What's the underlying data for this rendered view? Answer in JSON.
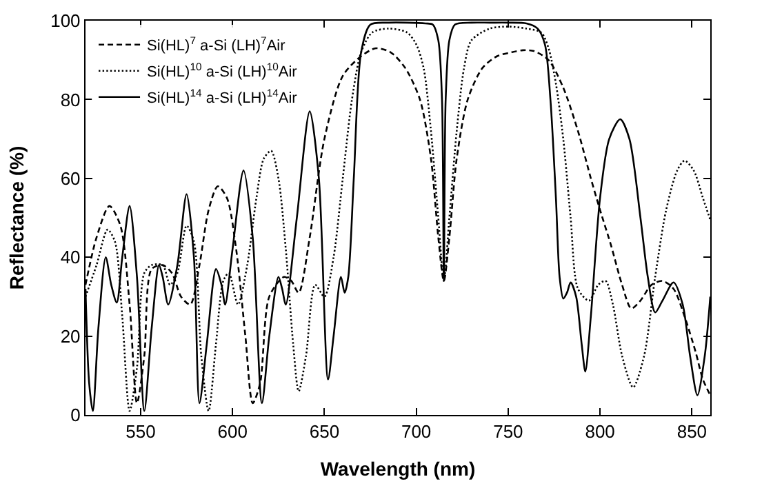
{
  "chart_data": {
    "type": "line",
    "xlabel": "Wavelength (nm)",
    "ylabel": "Reflectance (%)",
    "xlim": [
      520,
      860
    ],
    "ylim": [
      0,
      100
    ],
    "xticks": [
      550,
      600,
      650,
      700,
      750,
      800,
      850
    ],
    "yticks": [
      0,
      20,
      40,
      60,
      80,
      100
    ],
    "legend": "top left",
    "marker": "none",
    "series": [
      {
        "name": "Si(HL)$^{7}$ a-Si (LH)$^{7}$Air",
        "color": "#000000",
        "line_style": "dashed",
        "x": [
          520,
          526,
          533,
          539,
          544,
          548,
          552,
          556,
          562,
          567,
          572,
          577,
          582,
          587,
          592,
          597,
          602,
          607,
          611,
          615,
          620,
          628,
          632,
          636,
          642,
          650,
          660,
          670,
          678,
          686,
          694,
          702,
          708,
          712,
          715,
          718,
          722,
          728,
          736,
          744,
          752,
          758,
          764,
          772,
          780,
          788,
          795,
          800,
          806,
          812,
          817,
          822,
          828,
          834,
          840,
          846,
          852,
          856,
          860
        ],
        "values": [
          33,
          45,
          53,
          48,
          28,
          3,
          15,
          37,
          38,
          36,
          30,
          28,
          38,
          52,
          58,
          55,
          42,
          20,
          3,
          8,
          30,
          35,
          34,
          31,
          45,
          70,
          86,
          91,
          93,
          92,
          88,
          80,
          65,
          45,
          34,
          45,
          65,
          80,
          88,
          91,
          92,
          92.5,
          92.3,
          90,
          83,
          72,
          60,
          52,
          43,
          33,
          27,
          29,
          33,
          34,
          32,
          25,
          16,
          9,
          5
        ]
      },
      {
        "name": "Si(HL)$^{10}$ a-Si (LH)$^{10}$Air",
        "color": "#000000",
        "line_style": "dotted",
        "x": [
          520,
          526,
          532,
          536,
          540,
          544,
          548,
          552,
          556,
          562,
          566,
          570,
          575,
          579,
          583,
          587,
          591,
          595,
          598,
          603,
          608,
          613,
          617,
          621,
          625,
          629,
          633,
          636,
          640,
          645,
          650,
          655,
          660,
          665,
          670,
          676,
          685,
          695,
          700,
          704,
          708,
          712,
          715,
          718,
          722,
          726,
          730,
          740,
          750,
          760,
          768,
          772,
          776,
          780,
          784,
          788,
          794,
          799,
          803,
          807,
          812,
          818,
          824,
          830,
          836,
          842,
          846,
          851,
          856,
          860
        ],
        "values": [
          30,
          38,
          47,
          44,
          25,
          1,
          12,
          36,
          38,
          38,
          33,
          36,
          48,
          44,
          15,
          1,
          18,
          34,
          36,
          28,
          38,
          55,
          65,
          67,
          60,
          42,
          18,
          6,
          15,
          33,
          30,
          40,
          60,
          80,
          92,
          97,
          98,
          97,
          94,
          88,
          72,
          50,
          34,
          50,
          72,
          88,
          95,
          98,
          98.5,
          98,
          97,
          93,
          84,
          70,
          50,
          32,
          29,
          33,
          34,
          28,
          15,
          7,
          15,
          35,
          52,
          62,
          64.5,
          62,
          55,
          49.5
        ]
      },
      {
        "name": "Si(HL)$^{14}$ a-Si (LH)$^{14}$Air",
        "color": "#000000",
        "line_style": "solid",
        "x": [
          520,
          522,
          524,
          527,
          531,
          534,
          537,
          540,
          544,
          548,
          552,
          556,
          560,
          562,
          565,
          570,
          575,
          579,
          582,
          586,
          591,
          594,
          596,
          600,
          606,
          611,
          616,
          620,
          625,
          627,
          629,
          635,
          642,
          647,
          652,
          655,
          659,
          661,
          663,
          666,
          670,
          675,
          685,
          695,
          705,
          709,
          712,
          714,
          715,
          716,
          718,
          721,
          730,
          740,
          750,
          760,
          766,
          770,
          773,
          776,
          778,
          780,
          782,
          784,
          787,
          790,
          792,
          795,
          800,
          805,
          811,
          816,
          822,
          826,
          830,
          834,
          840,
          845,
          849,
          853,
          857,
          860
        ],
        "values": [
          32,
          8,
          1,
          22,
          40,
          33,
          28.5,
          40,
          53,
          35,
          1,
          22,
          38,
          35,
          28,
          38,
          56,
          40,
          3,
          18,
          37,
          33,
          28,
          42,
          62,
          45,
          3,
          20,
          35,
          32,
          28,
          50,
          77,
          60,
          9,
          20,
          35,
          31,
          35,
          60,
          92,
          99,
          99.5,
          99.5,
          99.3,
          99,
          95,
          80,
          34,
          80,
          95,
          99,
          99.5,
          99.5,
          99.5,
          99.3,
          98,
          94,
          80,
          55,
          35,
          29.5,
          31,
          33.6,
          30,
          18,
          11,
          25,
          55,
          70,
          75,
          70,
          50,
          35,
          26,
          29,
          33.6,
          28,
          15,
          5,
          15,
          30
        ]
      }
    ]
  }
}
